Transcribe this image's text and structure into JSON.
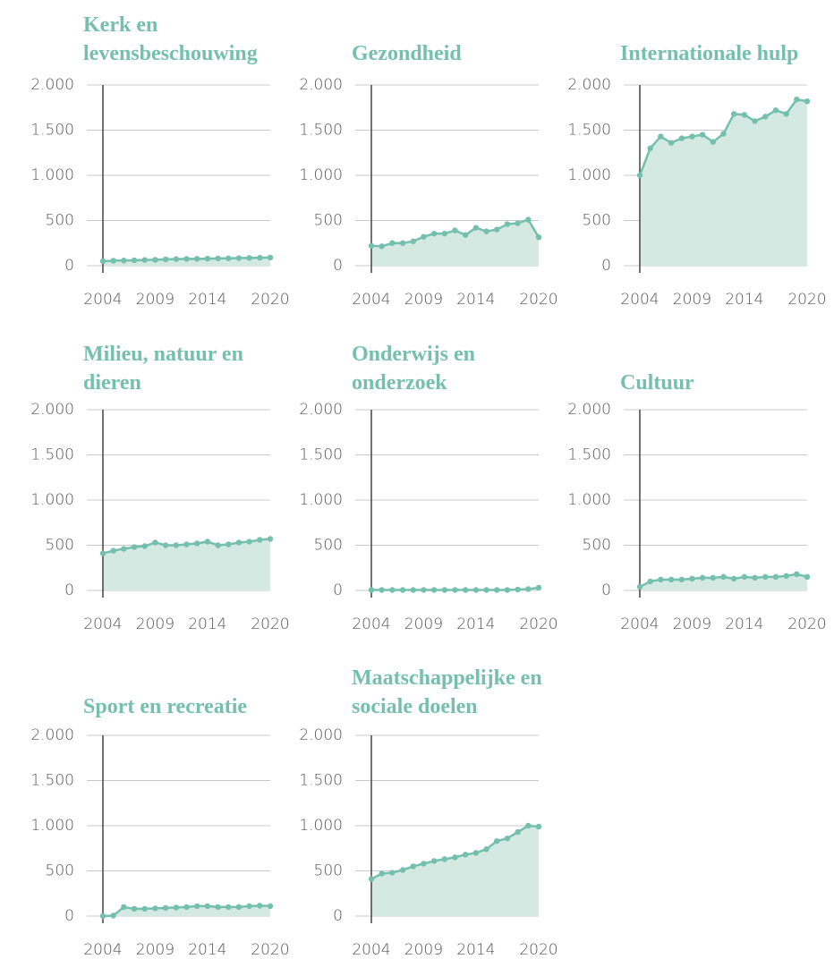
{
  "chart_data": [
    {
      "type": "area",
      "title": "Kerk en levensbeschouwing",
      "color": "#74bfae",
      "fill": "#d3e9e2",
      "grid": true,
      "x": [
        2004,
        2005,
        2006,
        2007,
        2008,
        2009,
        2010,
        2011,
        2012,
        2013,
        2014,
        2015,
        2016,
        2017,
        2018,
        2019,
        2020
      ],
      "values": [
        50,
        55,
        58,
        60,
        63,
        65,
        70,
        73,
        75,
        76,
        78,
        80,
        82,
        84,
        86,
        88,
        90
      ],
      "xlim": [
        2004,
        2020
      ],
      "xticks": [
        2004,
        2009,
        2014,
        2020
      ],
      "ylim": [
        0,
        2000
      ],
      "yticks": [
        0,
        500,
        {
          "value": 1000,
          "label": "1.000"
        },
        {
          "value": 1500,
          "label": "1.500"
        },
        {
          "value": 2000,
          "label": "2.000"
        }
      ]
    },
    {
      "type": "area",
      "title": "Gezondheid",
      "color": "#74bfae",
      "fill": "#d3e9e2",
      "grid": true,
      "x": [
        2004,
        2005,
        2006,
        2007,
        2008,
        2009,
        2010,
        2011,
        2012,
        2013,
        2014,
        2015,
        2016,
        2017,
        2018,
        2019,
        2020
      ],
      "values": [
        220,
        215,
        250,
        250,
        270,
        320,
        355,
        355,
        390,
        340,
        420,
        380,
        400,
        460,
        470,
        510,
        315
      ],
      "xlim": [
        2004,
        2020
      ],
      "xticks": [
        2004,
        2009,
        2014,
        2020
      ],
      "ylim": [
        0,
        2000
      ],
      "yticks": [
        0,
        500,
        {
          "value": 1000,
          "label": "1.000"
        },
        {
          "value": 1500,
          "label": "1.500"
        },
        {
          "value": 2000,
          "label": "2.000"
        }
      ]
    },
    {
      "type": "area",
      "title": "Internationale hulp",
      "color": "#74bfae",
      "fill": "#d3e9e2",
      "grid": true,
      "x": [
        2004,
        2005,
        2006,
        2007,
        2008,
        2009,
        2010,
        2011,
        2012,
        2013,
        2014,
        2015,
        2016,
        2017,
        2018,
        2019,
        2020
      ],
      "values": [
        1000,
        1300,
        1430,
        1360,
        1410,
        1430,
        1450,
        1370,
        1460,
        1680,
        1670,
        1600,
        1650,
        1720,
        1680,
        1840,
        1820
      ],
      "xlim": [
        2004,
        2020
      ],
      "xticks": [
        2004,
        2009,
        2014,
        2020
      ],
      "ylim": [
        0,
        2000
      ],
      "yticks": [
        0,
        500,
        {
          "value": 1000,
          "label": "1.000"
        },
        {
          "value": 1500,
          "label": "1.500"
        },
        {
          "value": 2000,
          "label": "2.000"
        }
      ]
    },
    {
      "type": "area",
      "title": "Milieu, natuur en dieren",
      "color": "#74bfae",
      "fill": "#d3e9e2",
      "grid": true,
      "x": [
        2004,
        2005,
        2006,
        2007,
        2008,
        2009,
        2010,
        2011,
        2012,
        2013,
        2014,
        2015,
        2016,
        2017,
        2018,
        2019,
        2020
      ],
      "values": [
        410,
        440,
        460,
        480,
        490,
        530,
        500,
        500,
        510,
        520,
        540,
        500,
        510,
        530,
        540,
        560,
        570
      ],
      "xlim": [
        2004,
        2020
      ],
      "xticks": [
        2004,
        2009,
        2014,
        2020
      ],
      "ylim": [
        0,
        2000
      ],
      "yticks": [
        0,
        500,
        {
          "value": 1000,
          "label": "1.000"
        },
        {
          "value": 1500,
          "label": "1.500"
        },
        {
          "value": 2000,
          "label": "2.000"
        }
      ]
    },
    {
      "type": "area",
      "title": "Onderwijs en onderzoek",
      "color": "#74bfae",
      "fill": "#d3e9e2",
      "grid": true,
      "x": [
        2004,
        2005,
        2006,
        2007,
        2008,
        2009,
        2010,
        2011,
        2012,
        2013,
        2014,
        2015,
        2016,
        2017,
        2018,
        2019,
        2020
      ],
      "values": [
        5,
        5,
        5,
        5,
        5,
        5,
        5,
        5,
        5,
        5,
        5,
        5,
        5,
        5,
        10,
        15,
        30
      ],
      "xlim": [
        2004,
        2020
      ],
      "xticks": [
        2004,
        2009,
        2014,
        2020
      ],
      "ylim": [
        0,
        2000
      ],
      "yticks": [
        0,
        500,
        {
          "value": 1000,
          "label": "1.000"
        },
        {
          "value": 1500,
          "label": "1.500"
        },
        {
          "value": 2000,
          "label": "2.000"
        }
      ]
    },
    {
      "type": "area",
      "title": "Cultuur",
      "color": "#74bfae",
      "fill": "#d3e9e2",
      "grid": true,
      "x": [
        2004,
        2005,
        2006,
        2007,
        2008,
        2009,
        2010,
        2011,
        2012,
        2013,
        2014,
        2015,
        2016,
        2017,
        2018,
        2019,
        2020
      ],
      "values": [
        40,
        100,
        120,
        120,
        120,
        130,
        140,
        140,
        150,
        130,
        150,
        140,
        150,
        150,
        160,
        180,
        150
      ],
      "xlim": [
        2004,
        2020
      ],
      "xticks": [
        2004,
        2009,
        2014,
        2020
      ],
      "ylim": [
        0,
        2000
      ],
      "yticks": [
        0,
        500,
        {
          "value": 1000,
          "label": "1.000"
        },
        {
          "value": 1500,
          "label": "1.500"
        },
        {
          "value": 2000,
          "label": "2.000"
        }
      ]
    },
    {
      "type": "area",
      "title": "Sport en recreatie",
      "color": "#74bfae",
      "fill": "#d3e9e2",
      "grid": true,
      "x": [
        2004,
        2005,
        2006,
        2007,
        2008,
        2009,
        2010,
        2011,
        2012,
        2013,
        2014,
        2015,
        2016,
        2017,
        2018,
        2019,
        2020
      ],
      "values": [
        0,
        5,
        100,
        80,
        80,
        85,
        90,
        95,
        100,
        110,
        110,
        100,
        100,
        100,
        110,
        115,
        110
      ],
      "xlim": [
        2004,
        2020
      ],
      "xticks": [
        2004,
        2009,
        2014,
        2020
      ],
      "ylim": [
        0,
        2000
      ],
      "yticks": [
        0,
        500,
        {
          "value": 1000,
          "label": "1.000"
        },
        {
          "value": 1500,
          "label": "1.500"
        },
        {
          "value": 2000,
          "label": "2.000"
        }
      ]
    },
    {
      "type": "area",
      "title": "Maatschappelijke en sociale doelen",
      "color": "#74bfae",
      "fill": "#d3e9e2",
      "grid": true,
      "x": [
        2004,
        2005,
        2006,
        2007,
        2008,
        2009,
        2010,
        2011,
        2012,
        2013,
        2014,
        2015,
        2016,
        2017,
        2018,
        2019,
        2020
      ],
      "values": [
        410,
        470,
        480,
        510,
        550,
        580,
        610,
        630,
        650,
        680,
        700,
        740,
        830,
        860,
        930,
        1000,
        990
      ],
      "xlim": [
        2004,
        2020
      ],
      "xticks": [
        2004,
        2009,
        2014,
        2020
      ],
      "ylim": [
        0,
        2000
      ],
      "yticks": [
        0,
        500,
        {
          "value": 1000,
          "label": "1.000"
        },
        {
          "value": 1500,
          "label": "1.500"
        },
        {
          "value": 2000,
          "label": "2.000"
        }
      ]
    }
  ]
}
